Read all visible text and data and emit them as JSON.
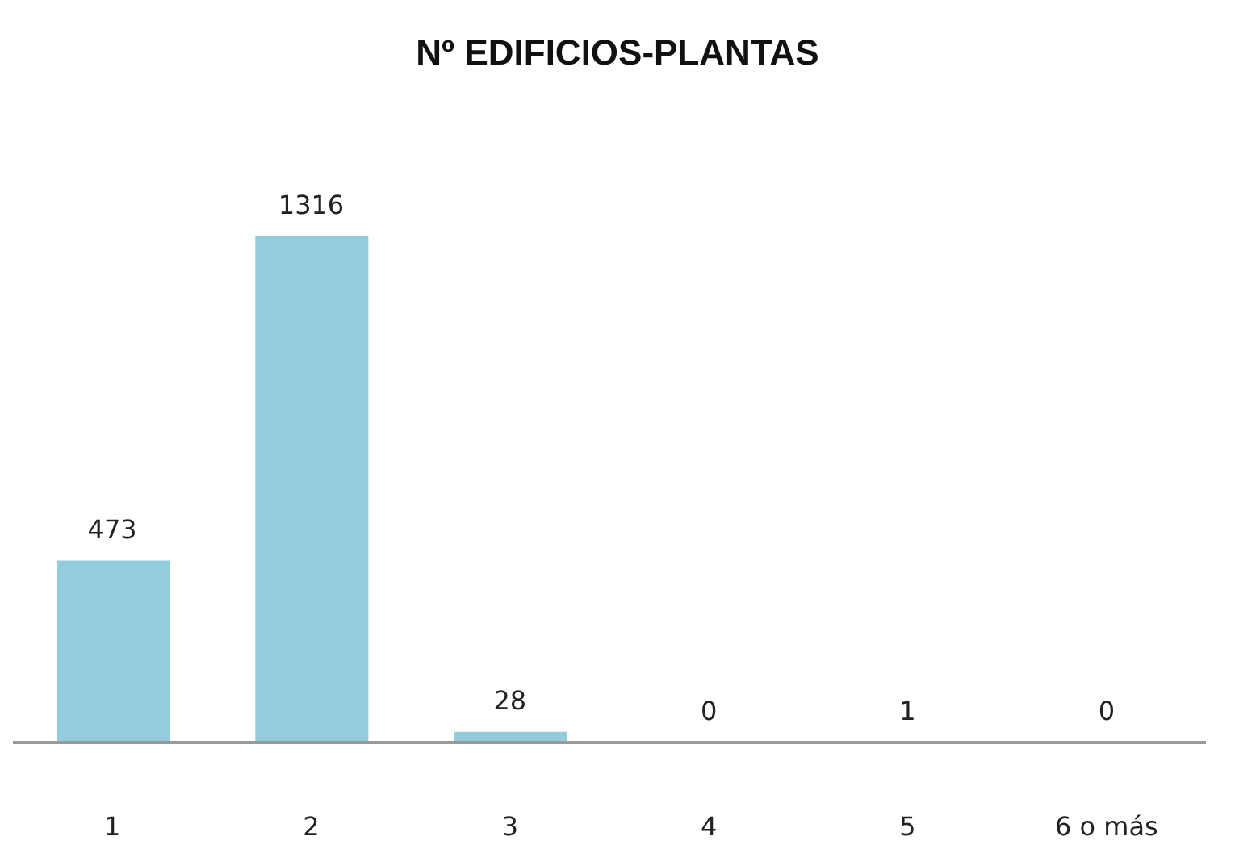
{
  "chart_data": {
    "type": "bar",
    "title": "Nº EDIFICIOS-PLANTAS",
    "categories": [
      "1",
      "2",
      "3",
      "4",
      "5",
      "6 o más"
    ],
    "values": [
      473,
      1316,
      28,
      0,
      1,
      0
    ],
    "color": "#93cddd",
    "data_labels": true
  }
}
